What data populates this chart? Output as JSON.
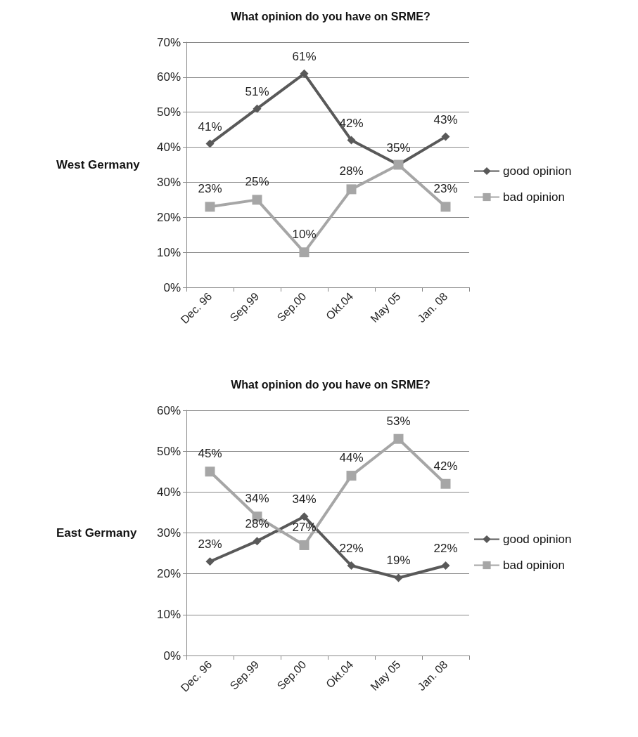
{
  "chart_data": [
    {
      "type": "line",
      "title": "What opinion do you have on SRME?",
      "ylabel": "West Germany",
      "categories": [
        "Dec. 96",
        "Sep.99",
        "Sep.00",
        "Okt.04",
        "May 05",
        "Jan. 08"
      ],
      "ylim": [
        0,
        70
      ],
      "yticks": [
        {
          "value": 0,
          "label": "0%"
        },
        {
          "value": 10,
          "label": "10%"
        },
        {
          "value": 20,
          "label": "20%"
        },
        {
          "value": 30,
          "label": "30%"
        },
        {
          "value": 40,
          "label": "40%"
        },
        {
          "value": 50,
          "label": "50%"
        },
        {
          "value": 60,
          "label": "60%"
        },
        {
          "value": 70,
          "label": "70%"
        }
      ],
      "grid": "y",
      "legend": "right",
      "series": [
        {
          "name": "good opinion",
          "color": "#595959",
          "marker": "diamond",
          "values": [
            41,
            51,
            61,
            42,
            35,
            43
          ],
          "value_labels": [
            "41%",
            "51%",
            "61%",
            "42%",
            "35%",
            "43%"
          ]
        },
        {
          "name": "bad opinion",
          "color": "#a6a6a6",
          "marker": "square",
          "values": [
            23,
            25,
            10,
            28,
            35,
            23
          ],
          "value_labels": [
            "23%",
            "25%",
            "10%",
            "28%",
            null,
            "23%"
          ]
        }
      ]
    },
    {
      "type": "line",
      "title": "What opinion do you have on SRME?",
      "ylabel": "East Germany",
      "categories": [
        "Dec. 96",
        "Sep.99",
        "Sep.00",
        "Okt.04",
        "May 05",
        "Jan. 08"
      ],
      "ylim": [
        0,
        60
      ],
      "yticks": [
        {
          "value": 0,
          "label": "0%"
        },
        {
          "value": 10,
          "label": "10%"
        },
        {
          "value": 20,
          "label": "20%"
        },
        {
          "value": 30,
          "label": "30%"
        },
        {
          "value": 40,
          "label": "40%"
        },
        {
          "value": 50,
          "label": "50%"
        },
        {
          "value": 60,
          "label": "60%"
        }
      ],
      "grid": "y",
      "legend": "right",
      "series": [
        {
          "name": "good opinion",
          "color": "#595959",
          "marker": "diamond",
          "values": [
            23,
            28,
            34,
            22,
            19,
            22
          ],
          "value_labels": [
            "23%",
            "28%",
            "34%",
            "22%",
            "19%",
            "22%"
          ]
        },
        {
          "name": "bad opinion",
          "color": "#a6a6a6",
          "marker": "square",
          "values": [
            45,
            34,
            27,
            44,
            53,
            42
          ],
          "value_labels": [
            "45%",
            "34%",
            "27%",
            "44%",
            "53%",
            "42%"
          ]
        }
      ]
    }
  ]
}
